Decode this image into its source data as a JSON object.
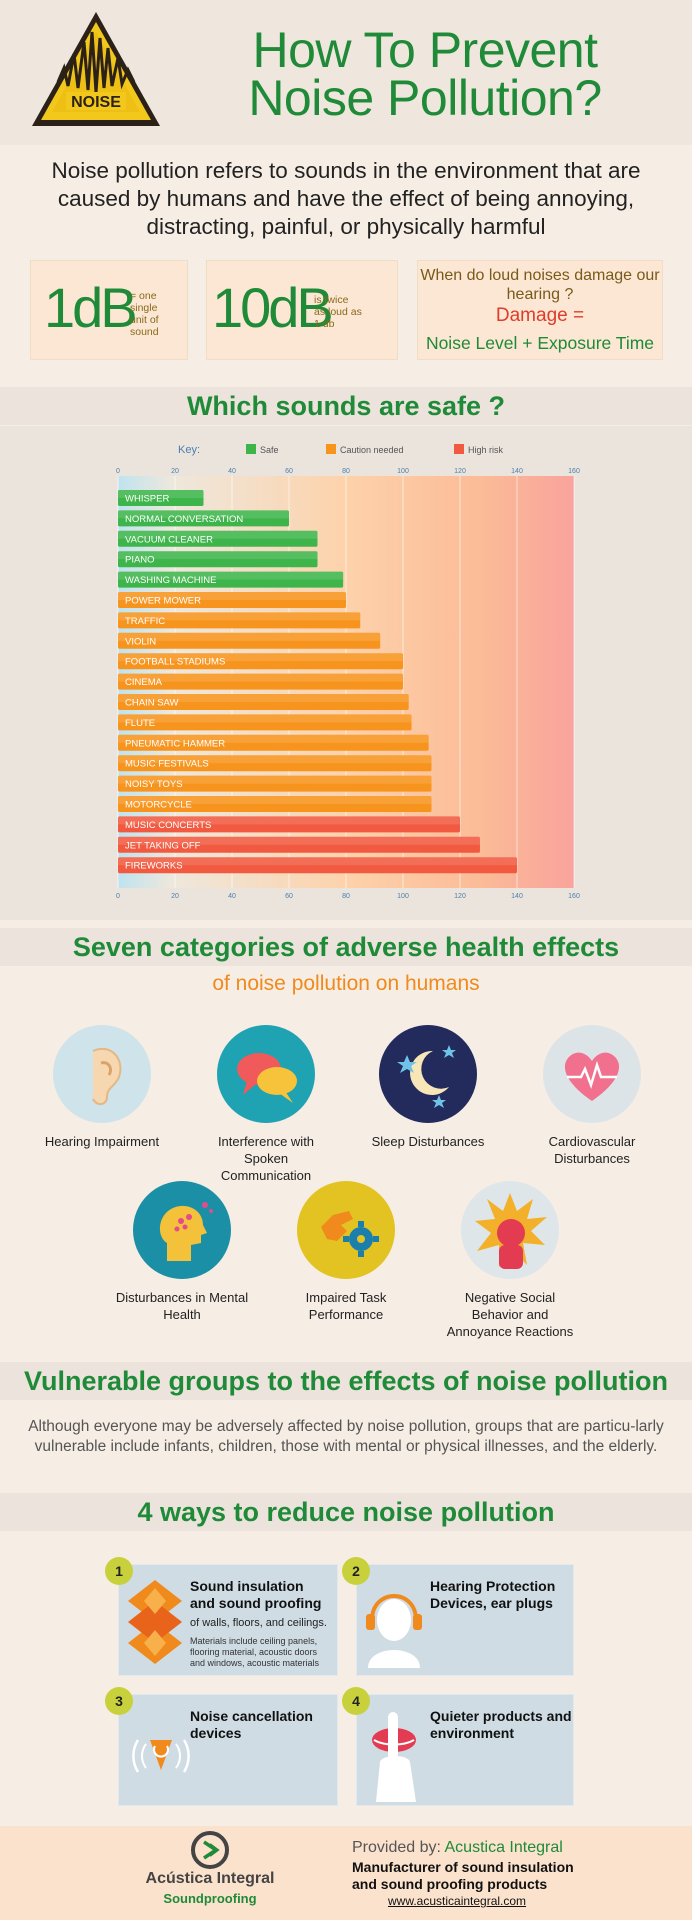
{
  "header": {
    "title_line1": "How To Prevent",
    "title_line2": "Noise Pollution?",
    "logo_text": "NOISE"
  },
  "intro": "Noise pollution refers to sounds in the environment that are caused by humans and have the effect of being annoying, distracting, painful, or physically harmful",
  "facts": {
    "db1_value": "1dB",
    "db1_desc_1": "= one",
    "db1_desc_2": "single",
    "db1_desc_3": "unit of",
    "db1_desc_4": "sound",
    "db10_value": "10dB",
    "db10_desc_1": "is  twice",
    "db10_desc_2": "as loud as",
    "db10_desc_3": "1 db",
    "question": "When do loud noises damage our hearing ?",
    "damage_label": "Damage =",
    "damage_formula": "Noise Level + Exposure Time"
  },
  "safe_heading": "Which sounds are safe ?",
  "chart_data": {
    "type": "bar",
    "orientation": "horizontal",
    "title": "Which sounds are safe ?",
    "xlabel": "",
    "ylabel": "",
    "xlim": [
      0,
      160
    ],
    "ticks": [
      0,
      20,
      40,
      60,
      80,
      100,
      120,
      140,
      160
    ],
    "key_title": "Key:",
    "legend": [
      {
        "name": "Safe",
        "color": "#3db54a"
      },
      {
        "name": "Caution needed",
        "color": "#f7941d"
      },
      {
        "name": "High risk",
        "color": "#f15a40"
      }
    ],
    "categories": [
      "WHISPER",
      "NORMAL CONVERSATION",
      "VACUUM CLEANER",
      "PIANO",
      "WASHING MACHINE",
      "POWER MOWER",
      "TRAFFIC",
      "VIOLIN",
      "FOOTBALL STADIUMS",
      "CINEMA",
      "CHAIN SAW",
      "FLUTE",
      "PNEUMATIC HAMMER",
      "MUSIC FESTIVALS",
      "NOISY TOYS",
      "MOTORCYCLE",
      "MUSIC CONCERTS",
      "JET TAKING OFF",
      "FIREWORKS"
    ],
    "values": [
      30,
      60,
      70,
      70,
      79,
      80,
      85,
      92,
      100,
      100,
      102,
      103,
      109,
      110,
      110,
      110,
      120,
      127,
      140
    ],
    "risk": [
      "safe",
      "safe",
      "safe",
      "safe",
      "safe",
      "caution",
      "caution",
      "caution",
      "caution",
      "caution",
      "caution",
      "caution",
      "caution",
      "caution",
      "caution",
      "caution",
      "high",
      "high",
      "high"
    ]
  },
  "effects": {
    "heading": "Seven categories of adverse health effects",
    "subheading": "of noise pollution on humans",
    "items": [
      {
        "label_1": "Hearing Impairment",
        "label_2": ""
      },
      {
        "label_1": "Interference with Spoken",
        "label_2": "Communication"
      },
      {
        "label_1": "Sleep Disturbances",
        "label_2": ""
      },
      {
        "label_1": "Cardiovascular",
        "label_2": "Disturbances"
      },
      {
        "label_1": "Disturbances in Mental",
        "label_2": "Health"
      },
      {
        "label_1": "Impaired Task",
        "label_2": "Performance"
      },
      {
        "label_1": "Negative Social",
        "label_2": "Behavior and",
        "label_3": "Annoyance Reactions"
      }
    ]
  },
  "vulnerable": {
    "heading": "Vulnerable groups to the effects of noise pollution",
    "text": "Although everyone may be adversely affected by noise pollution, groups that are particu-larly vulnerable include infants, children, those with mental or physical illnesses, and the elderly."
  },
  "ways": {
    "heading": "4 ways to reduce noise pollution",
    "items": [
      {
        "num": "1",
        "title_1": "Sound insulation",
        "title_2": "and sound proofing",
        "sub": "of walls, floors, and ceilings.",
        "note_1": "Materials include ceiling panels,",
        "note_2": "flooring material, acoustic doors",
        "note_3": "and windows, acoustic materials"
      },
      {
        "num": "2",
        "title_1": "Hearing Protection",
        "title_2": "Devices, ear plugs"
      },
      {
        "num": "3",
        "title_1": "Noise cancellation",
        "title_2": "devices"
      },
      {
        "num": "4",
        "title_1": "Quieter products and",
        "title_2": "environment"
      }
    ]
  },
  "footer": {
    "logo_name": "Acústica Integral",
    "logo_sub": "Soundproofing",
    "provided_by": "Provided by: ",
    "provider": "Acustica Integral",
    "mfr_1": "Manufacturer of sound insulation",
    "mfr_2": "and sound  proofing products",
    "website": "www.acusticaintegral.com"
  },
  "colors": {
    "brand_green": "#1f8a38",
    "accent_orange": "#f08a1c",
    "danger_red": "#e03b2b"
  }
}
